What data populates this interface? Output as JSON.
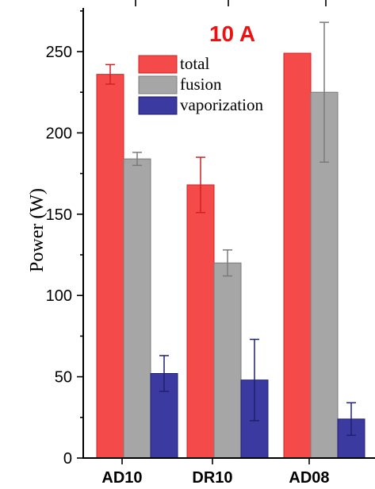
{
  "chart_data": {
    "type": "bar",
    "title": "10 A",
    "title_color": "#ee1111",
    "xlabel": "",
    "ylabel": "Power (W)",
    "categories": [
      "AD10",
      "DR10",
      "AD08"
    ],
    "ylim": [
      0,
      270
    ],
    "yticks": [
      0,
      50,
      100,
      150,
      200,
      250
    ],
    "grid": false,
    "legend_position": "top-center",
    "series": [
      {
        "name": "total",
        "color": "#f54a4a",
        "edge_color": "#d42020",
        "values": [
          236,
          168,
          249
        ],
        "errors": [
          6,
          17,
          null
        ]
      },
      {
        "name": "fusion",
        "color": "#a6a6a6",
        "edge_color": "#7a7a7a",
        "values": [
          184,
          120,
          225
        ],
        "errors": [
          4,
          8,
          43
        ]
      },
      {
        "name": "vaporization",
        "color": "#3a3aa0",
        "edge_color": "#202070",
        "values": [
          52,
          48,
          24
        ],
        "errors": [
          11,
          25,
          10
        ]
      }
    ]
  }
}
